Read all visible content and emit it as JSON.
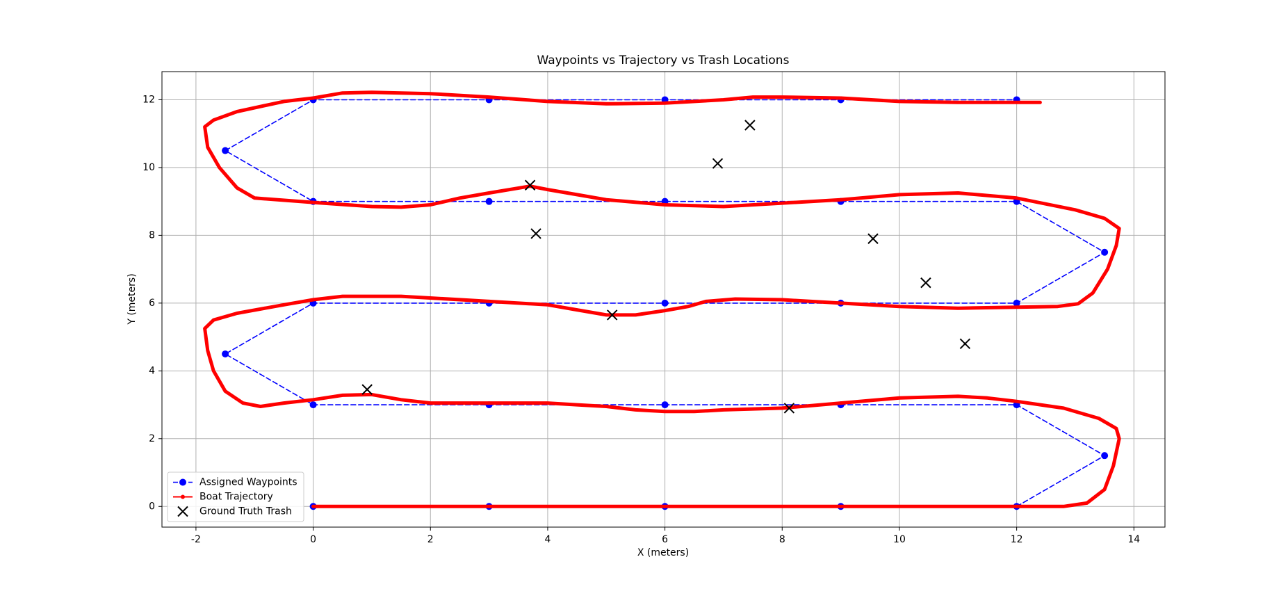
{
  "chart_data": {
    "type": "line",
    "title": "Waypoints vs Trajectory vs Trash Locations",
    "xlabel": "X (meters)",
    "ylabel": "Y (meters)",
    "xlim": [
      -2.58,
      14.53
    ],
    "ylim": [
      -0.61,
      12.83
    ],
    "xticks": [
      -2,
      0,
      2,
      4,
      6,
      8,
      10,
      12,
      14
    ],
    "yticks": [
      0,
      2,
      4,
      6,
      8,
      10,
      12
    ],
    "grid": true,
    "legend": "lower left",
    "series": [
      {
        "name": "Assigned Waypoints",
        "color": "#0000ff",
        "linestyle": "dashed",
        "marker": "circle",
        "x": [
          0,
          3,
          6,
          9,
          12,
          13.5,
          12,
          9,
          6,
          3,
          0,
          -1.5,
          0,
          3,
          6,
          9,
          12,
          13.5,
          12,
          9,
          6,
          3,
          0,
          -1.5,
          0,
          3,
          6,
          9,
          12
        ],
        "y": [
          0,
          0,
          0,
          0,
          0,
          1.5,
          3,
          3,
          3,
          3,
          3,
          4.5,
          6,
          6,
          6,
          6,
          6,
          7.5,
          9,
          9,
          9,
          9,
          9,
          10.5,
          12,
          12,
          12,
          12,
          12
        ]
      },
      {
        "name": "Boat Trajectory",
        "color": "#ff0000",
        "linestyle": "solid",
        "marker": "dot",
        "x": [
          0,
          12.8,
          13.2,
          13.5,
          13.65,
          13.75,
          13.7,
          13.4,
          12.8,
          12,
          11.5,
          11,
          10,
          9,
          8,
          7,
          6.5,
          6,
          5.5,
          5,
          4.5,
          4,
          3,
          2,
          1.5,
          1,
          0.5,
          0,
          -0.5,
          -0.9,
          -1.2,
          -1.5,
          -1.7,
          -1.8,
          -1.85,
          -1.7,
          -1.3,
          -0.5,
          0,
          0.5,
          1.5,
          3,
          4,
          4.5,
          5,
          5.5,
          6,
          6.4,
          6.7,
          7.2,
          8,
          9,
          10,
          11,
          12,
          12.7,
          13.05,
          13.3,
          13.55,
          13.7,
          13.75,
          13.5,
          13,
          12,
          11,
          10,
          9,
          8,
          7,
          6,
          5,
          4.5,
          4,
          3.7,
          3,
          2.5,
          2,
          1.5,
          1,
          0,
          -1,
          -1.3,
          -1.6,
          -1.8,
          -1.85,
          -1.7,
          -1.3,
          -0.5,
          0,
          0.5,
          1,
          2,
          3,
          4,
          5,
          6,
          7,
          7.5,
          8,
          9,
          10,
          11,
          12,
          12.4
        ],
        "y": [
          0,
          0,
          0.1,
          0.5,
          1.2,
          2.0,
          2.3,
          2.6,
          2.9,
          3.1,
          3.2,
          3.25,
          3.2,
          3.05,
          2.9,
          2.85,
          2.8,
          2.8,
          2.85,
          2.95,
          3.0,
          3.05,
          3.05,
          3.05,
          3.15,
          3.3,
          3.28,
          3.15,
          3.05,
          2.95,
          3.05,
          3.4,
          4.0,
          4.6,
          5.25,
          5.5,
          5.7,
          5.95,
          6.1,
          6.2,
          6.2,
          6.05,
          5.95,
          5.8,
          5.65,
          5.65,
          5.78,
          5.9,
          6.05,
          6.12,
          6.1,
          6.0,
          5.9,
          5.85,
          5.88,
          5.9,
          5.98,
          6.3,
          7.0,
          7.7,
          8.2,
          8.5,
          8.75,
          9.1,
          9.25,
          9.2,
          9.05,
          8.95,
          8.85,
          8.9,
          9.05,
          9.2,
          9.35,
          9.45,
          9.25,
          9.1,
          8.9,
          8.83,
          8.85,
          8.97,
          9.1,
          9.4,
          10,
          10.6,
          11.2,
          11.4,
          11.65,
          11.95,
          12.05,
          12.2,
          12.22,
          12.18,
          12.08,
          11.95,
          11.88,
          11.9,
          12.0,
          12.08,
          12.08,
          12.05,
          11.95,
          11.92,
          11.92,
          11.92
        ]
      },
      {
        "name": "Ground Truth Trash",
        "color": "#000000",
        "linestyle": "none",
        "marker": "x",
        "x": [
          0.92,
          3.7,
          3.8,
          5.1,
          6.9,
          7.45,
          8.12,
          9.55,
          10.45,
          11.12
        ],
        "y": [
          3.45,
          9.48,
          8.05,
          5.65,
          10.12,
          11.25,
          2.9,
          7.9,
          6.6,
          4.8
        ]
      }
    ]
  }
}
